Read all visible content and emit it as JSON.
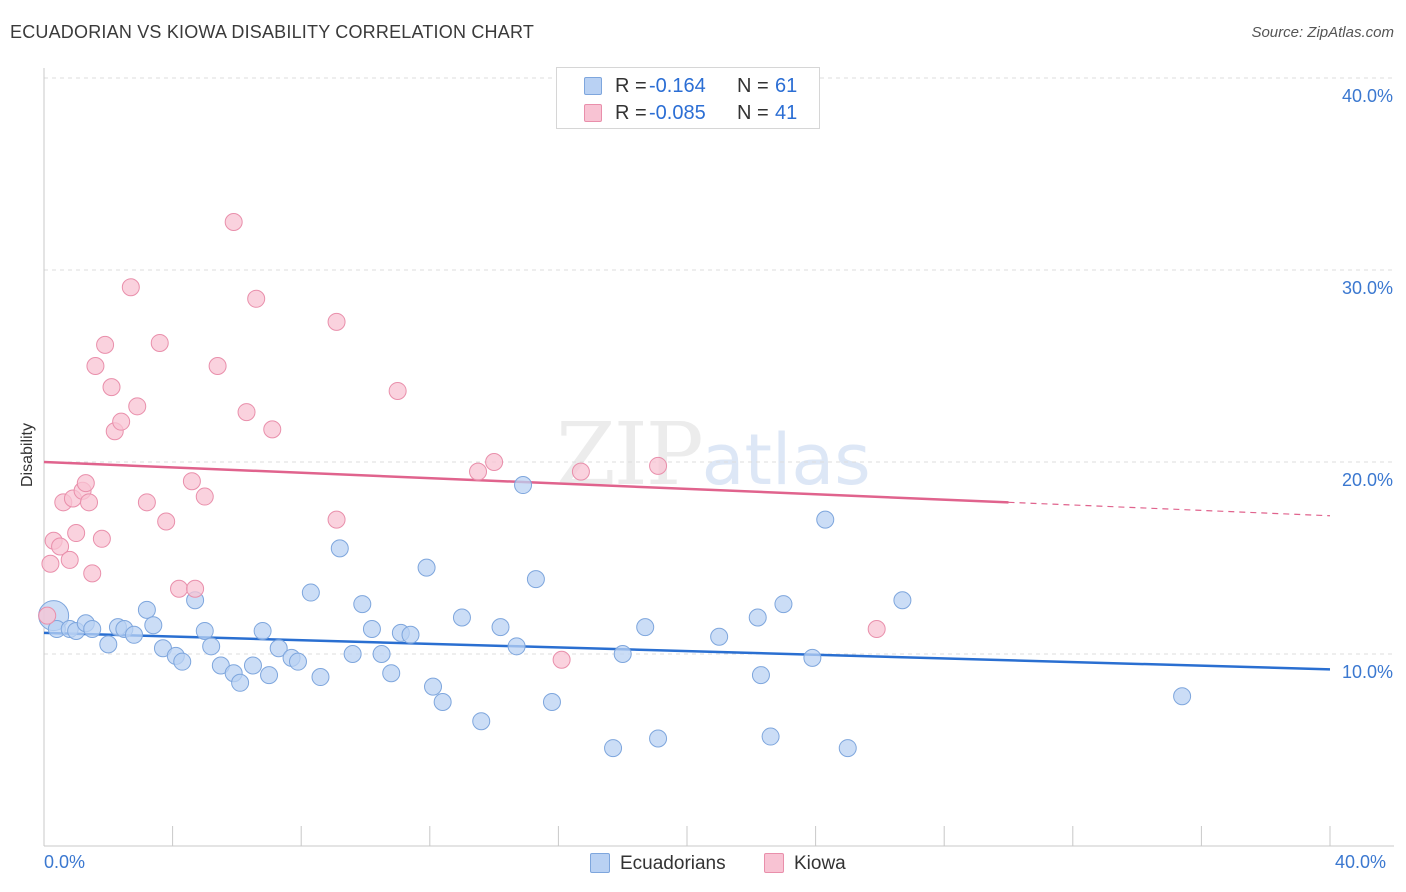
{
  "title": "ECUADORIAN VS KIOWA DISABILITY CORRELATION CHART",
  "source": "Source: ZipAtlas.com",
  "watermark": {
    "zip": "ZIP",
    "atlas": "atlas"
  },
  "colors": {
    "blue_fill": "#b9d1f3",
    "blue_stroke": "#7ea6dd",
    "blue_line": "#2a6fd1",
    "pink_fill": "#f8c3d3",
    "pink_stroke": "#e98fab",
    "pink_line": "#e0638d",
    "tick_label": "#3b78d0",
    "grid": "#dddddd"
  },
  "stats_legend": {
    "rows": [
      {
        "r_label": "R =",
        "r_value": "-0.164",
        "n_label": "N =",
        "n_value": "61",
        "series": "blue"
      },
      {
        "r_label": "R =",
        "r_value": "-0.085",
        "n_label": "N =",
        "n_value": "41",
        "series": "pink"
      }
    ]
  },
  "bottom_legend": [
    {
      "label": "Ecuadorians",
      "series": "blue"
    },
    {
      "label": "Kiowa",
      "series": "pink"
    }
  ],
  "chart_data": {
    "type": "scatter",
    "title": "ECUADORIAN VS KIOWA DISABILITY CORRELATION CHART",
    "xlabel": "",
    "ylabel": "Disability",
    "xlim": [
      0,
      40
    ],
    "ylim": [
      0,
      40
    ],
    "x_tick_labels": [
      "0.0%",
      "40.0%"
    ],
    "y_tick_labels": [
      "10.0%",
      "20.0%",
      "30.0%",
      "40.0%"
    ],
    "y_ticks": [
      10,
      20,
      30,
      40
    ],
    "grid": "horizontal dashed",
    "series": [
      {
        "name": "Ecuadorians",
        "color": "blue",
        "trend": {
          "x": [
            0,
            40
          ],
          "y": [
            11.1,
            9.2
          ],
          "dashed_from": null
        },
        "points": [
          [
            0.3,
            12.0
          ],
          [
            0.4,
            11.3
          ],
          [
            0.8,
            11.3
          ],
          [
            1.0,
            11.2
          ],
          [
            1.3,
            11.6
          ],
          [
            1.5,
            11.3
          ],
          [
            2.0,
            10.5
          ],
          [
            2.3,
            11.4
          ],
          [
            2.5,
            11.3
          ],
          [
            2.8,
            11.0
          ],
          [
            3.2,
            12.3
          ],
          [
            3.4,
            11.5
          ],
          [
            3.7,
            10.3
          ],
          [
            4.1,
            9.9
          ],
          [
            4.3,
            9.6
          ],
          [
            4.7,
            12.8
          ],
          [
            5.0,
            11.2
          ],
          [
            5.2,
            10.4
          ],
          [
            5.5,
            9.4
          ],
          [
            5.9,
            9.0
          ],
          [
            6.1,
            8.5
          ],
          [
            6.5,
            9.4
          ],
          [
            6.8,
            11.2
          ],
          [
            7.0,
            8.9
          ],
          [
            7.3,
            10.3
          ],
          [
            7.7,
            9.8
          ],
          [
            7.9,
            9.6
          ],
          [
            8.3,
            13.2
          ],
          [
            8.6,
            8.8
          ],
          [
            9.2,
            15.5
          ],
          [
            9.6,
            10.0
          ],
          [
            9.9,
            12.6
          ],
          [
            10.2,
            11.3
          ],
          [
            10.5,
            10.0
          ],
          [
            10.8,
            9.0
          ],
          [
            11.1,
            11.1
          ],
          [
            11.4,
            11.0
          ],
          [
            11.9,
            14.5
          ],
          [
            12.1,
            8.3
          ],
          [
            12.4,
            7.5
          ],
          [
            13.0,
            11.9
          ],
          [
            13.6,
            6.5
          ],
          [
            14.2,
            11.4
          ],
          [
            14.7,
            10.4
          ],
          [
            14.9,
            18.8
          ],
          [
            15.3,
            13.9
          ],
          [
            15.8,
            7.5
          ],
          [
            17.7,
            5.1
          ],
          [
            18.0,
            10.0
          ],
          [
            18.7,
            11.4
          ],
          [
            19.1,
            5.6
          ],
          [
            21.0,
            10.9
          ],
          [
            22.2,
            11.9
          ],
          [
            22.3,
            8.9
          ],
          [
            22.6,
            5.7
          ],
          [
            23.0,
            12.6
          ],
          [
            23.9,
            9.8
          ],
          [
            24.3,
            17.0
          ],
          [
            25.0,
            5.1
          ],
          [
            26.7,
            12.8
          ],
          [
            35.4,
            7.8
          ]
        ]
      },
      {
        "name": "Kiowa",
        "color": "pink",
        "trend": {
          "x": [
            0,
            40
          ],
          "y": [
            20.0,
            17.2
          ],
          "dashed_from": 30.0
        },
        "points": [
          [
            0.1,
            12.0
          ],
          [
            0.2,
            14.7
          ],
          [
            0.3,
            15.9
          ],
          [
            0.5,
            15.6
          ],
          [
            0.6,
            17.9
          ],
          [
            0.8,
            14.9
          ],
          [
            0.9,
            18.1
          ],
          [
            1.0,
            16.3
          ],
          [
            1.2,
            18.5
          ],
          [
            1.3,
            18.9
          ],
          [
            1.4,
            17.9
          ],
          [
            1.5,
            14.2
          ],
          [
            1.6,
            25.0
          ],
          [
            1.8,
            16.0
          ],
          [
            1.9,
            26.1
          ],
          [
            2.1,
            23.9
          ],
          [
            2.2,
            21.6
          ],
          [
            2.4,
            22.1
          ],
          [
            2.7,
            29.1
          ],
          [
            2.9,
            22.9
          ],
          [
            3.2,
            17.9
          ],
          [
            3.6,
            26.2
          ],
          [
            3.8,
            16.9
          ],
          [
            4.2,
            13.4
          ],
          [
            4.6,
            19.0
          ],
          [
            4.7,
            13.4
          ],
          [
            5.0,
            18.2
          ],
          [
            5.4,
            25.0
          ],
          [
            5.9,
            32.5
          ],
          [
            6.3,
            22.6
          ],
          [
            6.6,
            28.5
          ],
          [
            7.1,
            21.7
          ],
          [
            9.1,
            27.3
          ],
          [
            9.1,
            17.0
          ],
          [
            11.0,
            23.7
          ],
          [
            13.5,
            19.5
          ],
          [
            14.0,
            20.0
          ],
          [
            16.1,
            9.7
          ],
          [
            16.7,
            19.5
          ],
          [
            19.1,
            19.8
          ],
          [
            25.9,
            11.3
          ]
        ]
      }
    ]
  }
}
